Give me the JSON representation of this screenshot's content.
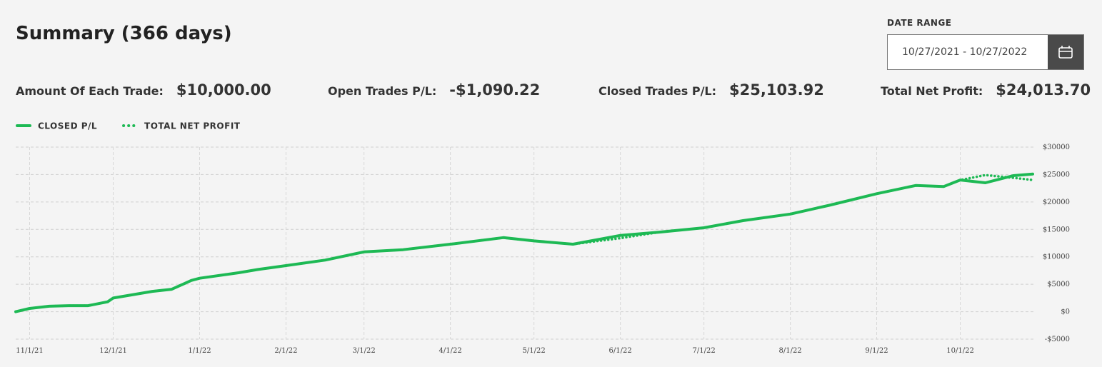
{
  "header": {
    "title": "Summary (366 days)",
    "date_range_label": "DATE RANGE",
    "date_range": "10/27/2021 - 10/27/2022"
  },
  "stats": [
    {
      "label": "Amount Of Each Trade:",
      "value": "$10,000.00"
    },
    {
      "label": "Open Trades P/L:",
      "value": "-$1,090.22"
    },
    {
      "label": "Closed Trades P/L:",
      "value": "$25,103.92"
    },
    {
      "label": "Total Net Profit:",
      "value": "$24,013.70"
    }
  ],
  "chart_data": {
    "type": "line",
    "x": [
      "10/27/21",
      "11/1/21",
      "11/8/21",
      "11/15/21",
      "11/22/21",
      "11/29/21",
      "12/1/21",
      "12/15/21",
      "12/22/21",
      "12/29/21",
      "1/1/22",
      "1/15/22",
      "1/22/22",
      "2/1/22",
      "2/15/22",
      "3/1/22",
      "3/15/22",
      "4/1/22",
      "4/20/22",
      "5/1/22",
      "5/15/22",
      "6/1/22",
      "6/15/22",
      "7/1/22",
      "7/15/22",
      "8/1/22",
      "8/15/22",
      "9/1/22",
      "9/15/22",
      "9/25/22",
      "10/1/22",
      "10/10/22",
      "10/20/22",
      "10/27/22"
    ],
    "series": [
      {
        "name": "CLOSED P/L",
        "color": "#1db954",
        "style": "solid",
        "values": [
          0,
          600,
          1000,
          1100,
          1100,
          1800,
          2500,
          3700,
          4100,
          5700,
          6100,
          7100,
          7700,
          8400,
          9400,
          10900,
          11300,
          12300,
          13500,
          12900,
          12300,
          13900,
          14500,
          15300,
          16600,
          17800,
          19400,
          21500,
          23000,
          22800,
          24000,
          23500,
          24800,
          25100
        ]
      },
      {
        "name": "TOTAL NET PROFIT",
        "color": "#1db954",
        "style": "dotted",
        "values": [
          0,
          600,
          1000,
          1100,
          1100,
          1800,
          2500,
          3700,
          4100,
          5700,
          6100,
          7100,
          7700,
          8400,
          9400,
          10900,
          11300,
          12300,
          13500,
          12900,
          12300,
          13400,
          14500,
          15300,
          16600,
          17800,
          19400,
          21500,
          23000,
          22800,
          24000,
          24900,
          24400,
          24000
        ]
      }
    ],
    "xlim": [
      "10/27/21",
      "10/27/22"
    ],
    "xticks": [
      "11/1/21",
      "12/1/21",
      "1/1/22",
      "2/1/22",
      "3/1/22",
      "4/1/22",
      "5/1/22",
      "6/1/22",
      "7/1/22",
      "8/1/22",
      "9/1/22",
      "10/1/22"
    ],
    "ylim": [
      -5000,
      30000
    ],
    "yticks": [
      {
        "value": -5000,
        "label": "-$5000"
      },
      {
        "value": 0,
        "label": "$0"
      },
      {
        "value": 5000,
        "label": "$5000"
      },
      {
        "value": 10000,
        "label": "$10000"
      },
      {
        "value": 15000,
        "label": "$15000"
      },
      {
        "value": 20000,
        "label": "$20000"
      },
      {
        "value": 25000,
        "label": "$25000"
      },
      {
        "value": 30000,
        "label": "$30000"
      }
    ],
    "grid": true
  }
}
